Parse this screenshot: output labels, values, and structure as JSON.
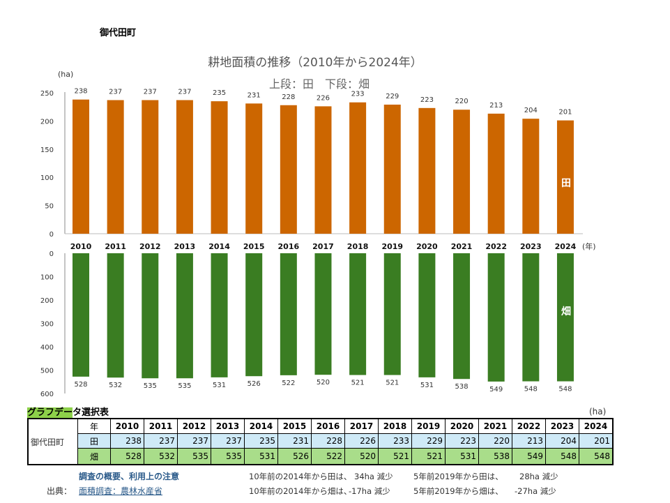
{
  "town": "御代田町",
  "chart_data": [
    {
      "type": "bar",
      "title": "耕地面積の推移（2010年から2024年）",
      "subtitle": "上段：田　下段：畑",
      "series_label": "田",
      "ylabel": "(ha)",
      "xlabel": "(年)",
      "ylim": [
        0,
        250
      ],
      "yticks": [
        "0",
        "50",
        "100",
        "150",
        "200",
        "250"
      ],
      "categories": [
        "2010",
        "2011",
        "2012",
        "2013",
        "2014",
        "2015",
        "2016",
        "2017",
        "2018",
        "2019",
        "2020",
        "2021",
        "2022",
        "2023",
        "2024"
      ],
      "values": [
        238,
        237,
        237,
        237,
        235,
        231,
        228,
        226,
        233,
        229,
        223,
        220,
        213,
        204,
        201
      ],
      "color": "#cc6600"
    },
    {
      "type": "bar",
      "series_label": "畑",
      "ylim": [
        0,
        600
      ],
      "inverted": true,
      "yticks": [
        "0",
        "100",
        "200",
        "300",
        "400",
        "500",
        "600"
      ],
      "categories": [
        "2010",
        "2011",
        "2012",
        "2013",
        "2014",
        "2015",
        "2016",
        "2017",
        "2018",
        "2019",
        "2020",
        "2021",
        "2022",
        "2023",
        "2024"
      ],
      "values": [
        528,
        532,
        535,
        535,
        531,
        526,
        522,
        520,
        521,
        521,
        531,
        538,
        549,
        548,
        548
      ],
      "color": "#3a7d22"
    }
  ],
  "table": {
    "title_hl": "グラフデー",
    "title_rest": "タ選択表",
    "unit": "(ha)",
    "town": "御代田町",
    "year_label": "年",
    "ta_label": "田",
    "ha_label": "畑"
  },
  "links": {
    "overview": "調査の概要、利用上の注意",
    "source_label": "出典：",
    "source": "面積調査：農林水産省"
  },
  "notes": {
    "r1a": "10年前の2014年から田は、",
    "r1b": "34ha 減少",
    "r1c": "5年前2019年から田は、",
    "r1d": "28ha 減少",
    "r2a": "10年前の2014年から畑は、",
    "r2b": "-17ha 減少",
    "r2c": "5年前2019年から畑は、",
    "r2d": "-27ha 減少"
  }
}
